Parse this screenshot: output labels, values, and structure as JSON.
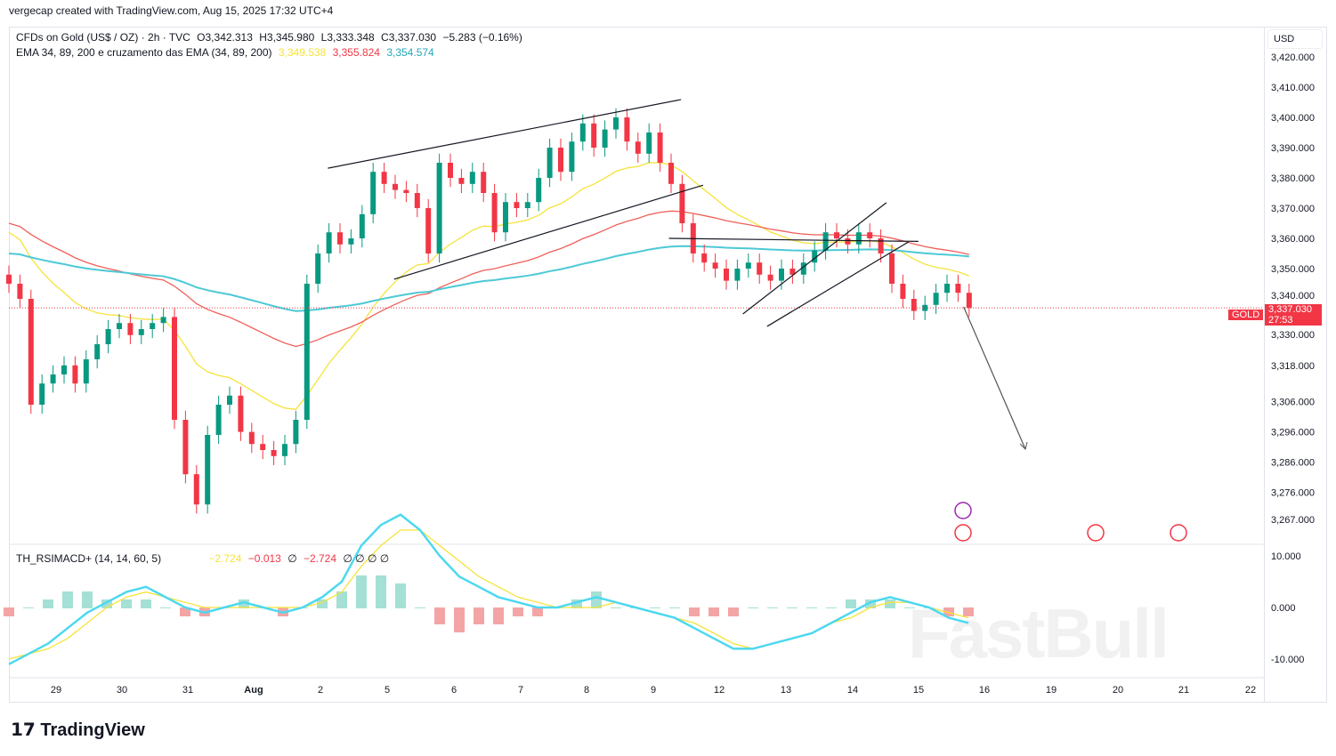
{
  "header": {
    "credit": "vergecap created with TradingView.com, Aug 15, 2025 17:32 UTC+4"
  },
  "legend": {
    "symbol": "CFDs on Gold (US$ / OZ) · 2h · TVC",
    "open": "O3,342.313",
    "high": "H3,345.980",
    "low": "L3,333.348",
    "close": "C3,337.030",
    "change": "−5.283 (−0.16%)",
    "ema_label": "EMA 34, 89, 200 e cruzamento das EMA (34, 89, 200)",
    "ema34": "3,349.538",
    "ema89": "3,355.824",
    "ema200": "3,354.574"
  },
  "osc_legend": {
    "label": "TH_RSIMACD+ (14, 14, 60, 5)",
    "v1": "−2.724",
    "v2": "−0.013",
    "v3": "∅",
    "v4": "−2.724",
    "v5": "∅ ∅ ∅ ∅"
  },
  "price_axis": {
    "currency": "USD",
    "symbol_tag": "GOLD",
    "last_price": "3,337.030",
    "countdown": "27:53"
  },
  "colors": {
    "up": "#089981",
    "down": "#f23645",
    "ema34": "#f5e33b",
    "ema89": "#f0605a",
    "ema200": "#4dc9d6"
  },
  "branding": {
    "logo": "TradingView",
    "watermark": "FastBull"
  },
  "chart_data": {
    "type": "candlestick",
    "ylim": [
      3262,
      3425
    ],
    "yticks": [
      "3,420.000",
      "3,410.000",
      "3,400.000",
      "3,390.000",
      "3,380.000",
      "3,370.000",
      "3,360.000",
      "3,350.000",
      "3,340.000",
      "3,330.000",
      "3,318.000",
      "3,306.000",
      "3,296.000",
      "3,286.000",
      "3,276.000",
      "3,267.000"
    ],
    "ytick_values": [
      3420,
      3410,
      3400,
      3390,
      3380,
      3370,
      3360,
      3350,
      3340,
      3330,
      3318,
      3306,
      3296,
      3286,
      3276,
      3267
    ],
    "xticks": [
      "29",
      "30",
      "31",
      "Aug",
      "2",
      "5",
      "6",
      "7",
      "8",
      "9",
      "12",
      "13",
      "14",
      "15",
      "16",
      "19",
      "20",
      "21",
      "22"
    ],
    "closes": [
      3345,
      3340,
      3305,
      3312,
      3315,
      3318,
      3312,
      3320,
      3325,
      3330,
      3332,
      3328,
      3330,
      3332,
      3334,
      3300,
      3282,
      3272,
      3295,
      3305,
      3308,
      3296,
      3292,
      3290,
      3288,
      3292,
      3300,
      3345,
      3355,
      3362,
      3358,
      3360,
      3368,
      3382,
      3378,
      3376,
      3375,
      3370,
      3355,
      3385,
      3380,
      3378,
      3382,
      3375,
      3362,
      3372,
      3370,
      3372,
      3380,
      3390,
      3382,
      3392,
      3398,
      3390,
      3396,
      3400,
      3392,
      3388,
      3395,
      3385,
      3378,
      3365,
      3355,
      3352,
      3350,
      3346,
      3350,
      3352,
      3348,
      3346,
      3350,
      3348,
      3352,
      3356,
      3362,
      3360,
      3358,
      3362,
      3360,
      3355,
      3345,
      3340,
      3336,
      3338,
      3342,
      3345,
      3342,
      3337
    ],
    "ema_periods": [
      34,
      89,
      200
    ],
    "drawings": [
      {
        "type": "line",
        "from": [
          28.9,
          3383.2
        ],
        "to": [
          60.9,
          3405.9
        ]
      },
      {
        "type": "line",
        "from": [
          34.9,
          3346.5
        ],
        "to": [
          62.9,
          3377.6
        ]
      },
      {
        "type": "line",
        "from": [
          59.8,
          3360
        ],
        "to": [
          82.4,
          3359
        ]
      },
      {
        "type": "line",
        "from": [
          66.5,
          3335
        ],
        "to": [
          79.5,
          3371.8
        ]
      },
      {
        "type": "line",
        "from": [
          68.7,
          3330.9
        ],
        "to": [
          81.5,
          3358.8
        ]
      },
      {
        "type": "arrow",
        "from": [
          86.5,
          3337.4
        ],
        "to": [
          92.1,
          3290.3
        ]
      }
    ],
    "oscillator": {
      "ylim": [
        -12,
        12
      ],
      "yticks": [
        "10.000",
        "0.000",
        "-10.000"
      ],
      "ytick_values": [
        10,
        0,
        -10
      ],
      "fast": [
        -11,
        -9,
        -7,
        -4,
        -1,
        1,
        3,
        4,
        2,
        0,
        -1,
        0,
        1,
        0,
        -1,
        0,
        2,
        5,
        12,
        16,
        18,
        15,
        10,
        6,
        4,
        2,
        1,
        0,
        0,
        1,
        2,
        1,
        0,
        -1,
        -2,
        -4,
        -6,
        -8,
        -8,
        -7,
        -6,
        -5,
        -3,
        -1,
        1,
        2,
        1,
        0,
        -2,
        -3
      ],
      "slow": [
        -10,
        -9,
        -8,
        -6,
        -3,
        0,
        2,
        3,
        2,
        1,
        0,
        0,
        0,
        0,
        0,
        0,
        1,
        3,
        8,
        12,
        15,
        15,
        12,
        9,
        6,
        4,
        2,
        1,
        0,
        0,
        0,
        1,
        0,
        -1,
        -2,
        -3,
        -5,
        -7,
        -8,
        -7,
        -6,
        -5,
        -3,
        -2,
        0,
        1,
        1,
        0,
        -1,
        -2
      ]
    }
  }
}
